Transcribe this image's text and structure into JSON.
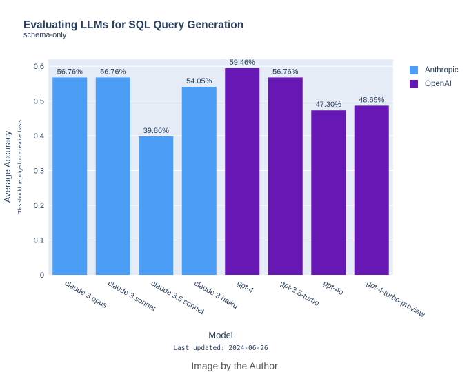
{
  "chart_data": {
    "type": "bar",
    "title": "Evaluating LLMs for SQL Query Generation",
    "subtitle": "schema-only",
    "xlabel": "Model",
    "ylabel": "Average Accuracy",
    "ylabel_note": "This should be judged on a relative basis",
    "ylim": [
      0,
      0.62
    ],
    "yticks": [
      0,
      0.1,
      0.2,
      0.3,
      0.4,
      0.5,
      0.6
    ],
    "ytick_labels": [
      "0",
      "0.1",
      "0.2",
      "0.3",
      "0.4",
      "0.5",
      "0.6"
    ],
    "grid": true,
    "legend_position": "top-right",
    "categories": [
      "claude 3 opus",
      "claude 3 sonnet",
      "claude 3.5 sonnet",
      "claude 3 haiku",
      "gpt-4",
      "gpt-3.5-turbo",
      "gpt-4o",
      "gpt-4-turbo-preview"
    ],
    "values": [
      0.5676,
      0.5676,
      0.3986,
      0.5405,
      0.5946,
      0.5676,
      0.473,
      0.4865
    ],
    "labels": [
      "56.76%",
      "56.76%",
      "39.86%",
      "54.05%",
      "59.46%",
      "56.76%",
      "47.30%",
      "48.65%"
    ],
    "groups": [
      "Anthropic",
      "Anthropic",
      "Anthropic",
      "Anthropic",
      "OpenAI",
      "OpenAI",
      "OpenAI",
      "OpenAI"
    ],
    "series": [
      {
        "name": "Anthropic",
        "color": "#4c9df5"
      },
      {
        "name": "OpenAI",
        "color": "#6717b3"
      }
    ]
  },
  "footer": {
    "updated": "Last updated: 2024-06-26",
    "credit": "Image by the Author"
  },
  "colors": {
    "plot_background": "#e5ecf6",
    "grid": "#ffffff",
    "text": "#2a3f5f"
  }
}
